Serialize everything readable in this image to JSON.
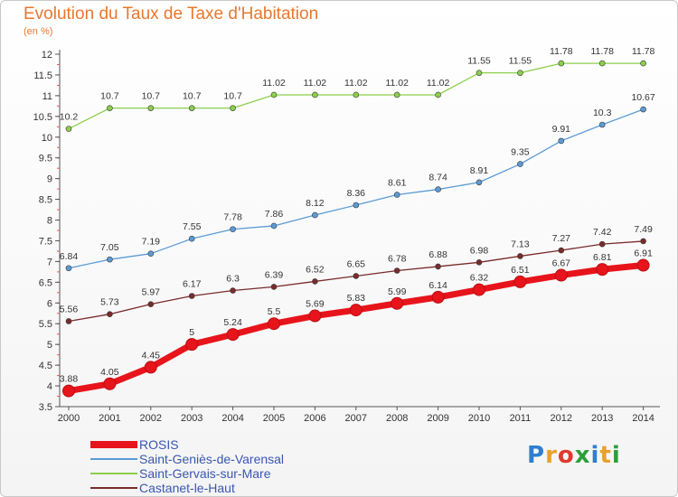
{
  "title": "Evolution du Taux de Taxe d'Habitation",
  "subtitle": "(en %)",
  "logo": {
    "text": "Proxiti",
    "letters": [
      "P",
      "r",
      "o",
      "x",
      "i",
      "t",
      "i"
    ],
    "colors": [
      "#2e7fd0",
      "#e8a12e",
      "#e03a2e",
      "#2f9e3a",
      "#2e7fd0",
      "#e8a12e",
      "#2f9e3a"
    ]
  },
  "chart_data": {
    "type": "line",
    "title": "Evolution du Taux de Taxe d'Habitation",
    "ylabel": "(en %)",
    "x": [
      "2000",
      "2001",
      "2002",
      "2003",
      "2004",
      "2005",
      "2006",
      "2007",
      "2008",
      "2009",
      "2010",
      "2011",
      "2012",
      "2013",
      "2014"
    ],
    "ylim": [
      3.5,
      12
    ],
    "yticks": [
      "3.5",
      "4",
      "4.5",
      "5",
      "5.5",
      "6",
      "6.5",
      "7",
      "7.5",
      "8",
      "8.5",
      "9",
      "9.5",
      "10",
      "10.5",
      "11",
      "11.5",
      "12"
    ],
    "grid": false,
    "legend_position": "bottom-left",
    "series": [
      {
        "name": "ROSIS",
        "color": "#e8141b",
        "values": [
          3.88,
          4.05,
          4.45,
          5,
          5.24,
          5.5,
          5.69,
          5.83,
          5.99,
          6.14,
          6.32,
          6.51,
          6.67,
          6.81,
          6.91
        ],
        "labels": [
          "3.88",
          "4.05",
          "4.45",
          "5",
          "5.24",
          "5.5",
          "5.69",
          "5.83",
          "5.99",
          "6.14",
          "6.32",
          "6.51",
          "6.67",
          "6.81",
          "6.91"
        ]
      },
      {
        "name": "Saint-Geniès-de-Varensal",
        "color": "#5b9bd5",
        "values": [
          6.84,
          7.05,
          7.19,
          7.55,
          7.78,
          7.86,
          8.12,
          8.36,
          8.61,
          8.74,
          8.91,
          9.35,
          9.91,
          10.3,
          10.67
        ],
        "labels": [
          "6.84",
          "7.05",
          "7.19",
          "7.55",
          "7.78",
          "7.86",
          "8.12",
          "8.36",
          "8.61",
          "8.74",
          "8.91",
          "9.35",
          "9.91",
          "10.3",
          "10.67"
        ]
      },
      {
        "name": "Saint-Gervais-sur-Mare",
        "color": "#8ccf4c",
        "values": [
          10.2,
          10.7,
          10.7,
          10.7,
          10.7,
          11.02,
          11.02,
          11.02,
          11.02,
          11.02,
          11.55,
          11.55,
          11.78,
          11.78,
          11.78
        ],
        "labels": [
          "10.2",
          "10.7",
          "10.7",
          "10.7",
          "10.7",
          "11.02",
          "11.02",
          "11.02",
          "11.02",
          "11.02",
          "11.55",
          "11.55",
          "11.78",
          "11.78",
          "11.78"
        ]
      },
      {
        "name": "Castanet-le-Haut",
        "color": "#7a2b2b",
        "values": [
          5.56,
          5.73,
          5.97,
          6.17,
          6.3,
          6.39,
          6.52,
          6.65,
          6.78,
          6.88,
          6.98,
          7.13,
          7.27,
          7.42,
          7.49
        ],
        "labels": [
          "5.56",
          "5.73",
          "5.97",
          "6.17",
          "6.3",
          "6.39",
          "6.52",
          "6.65",
          "6.78",
          "6.88",
          "6.98",
          "7.13",
          "7.27",
          "7.42",
          "7.49"
        ]
      }
    ]
  }
}
